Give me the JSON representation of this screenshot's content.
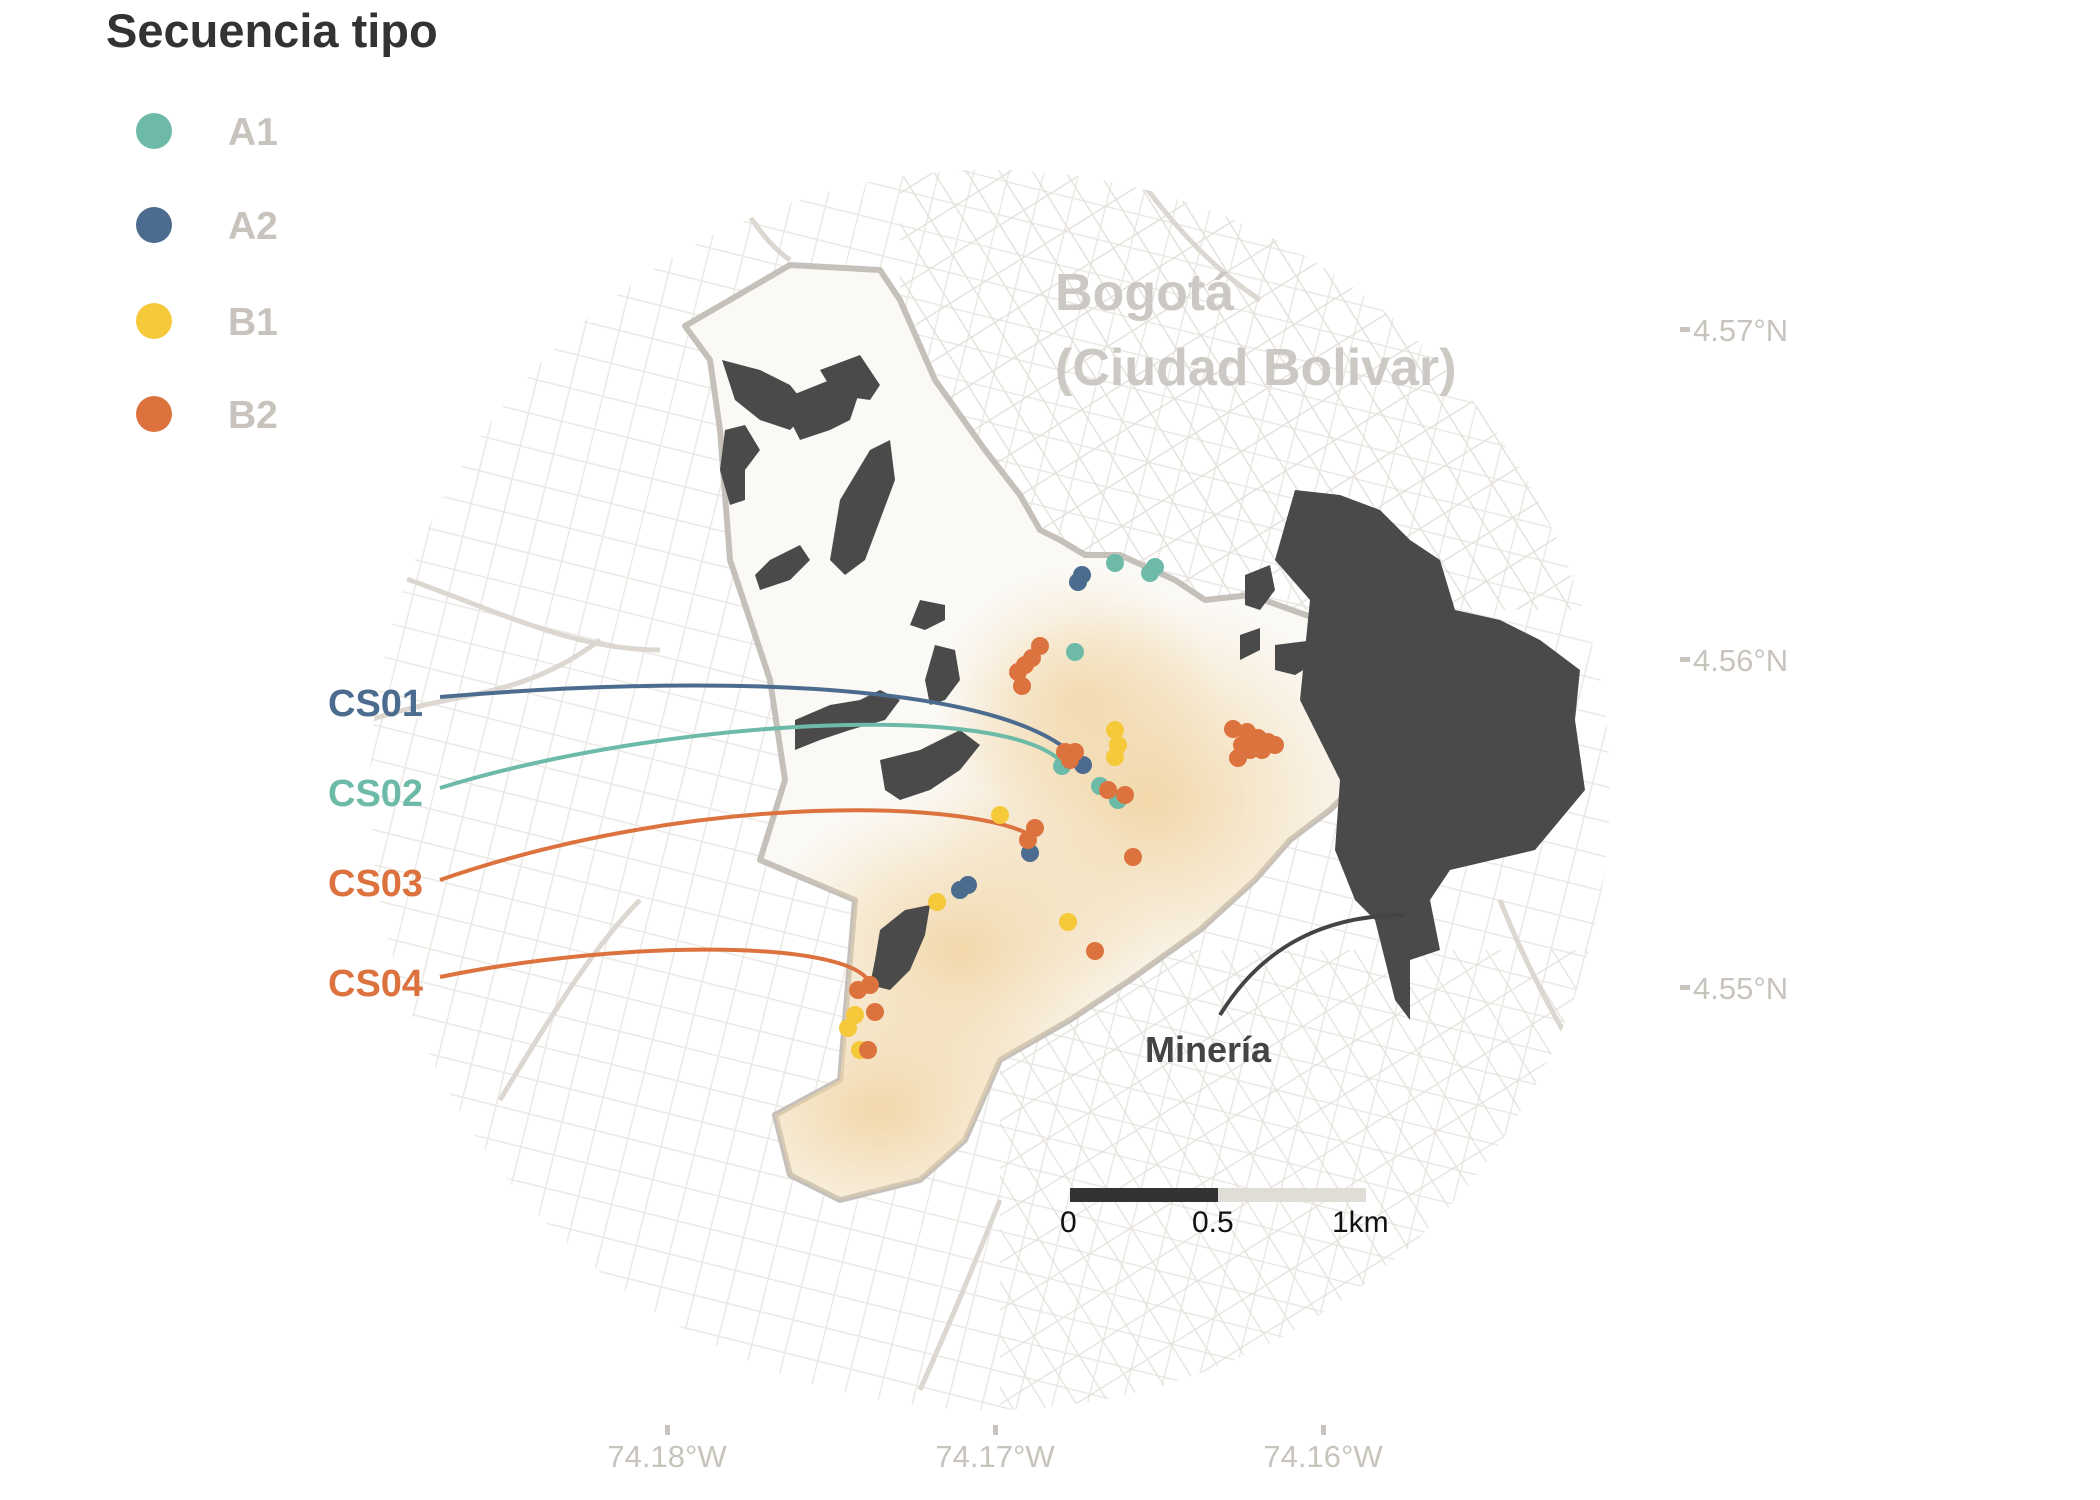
{
  "legend": {
    "title": "Secuencia tipo",
    "items": [
      {
        "key": "A1",
        "label": "A1",
        "color": "#6dbaa9"
      },
      {
        "key": "A2",
        "label": "A2",
        "color": "#4b6b8f"
      },
      {
        "key": "B1",
        "label": "B1",
        "color": "#f5c93a"
      },
      {
        "key": "B2",
        "label": "B2",
        "color": "#dc723e"
      }
    ]
  },
  "city_label": {
    "line1": "Bogotá",
    "line2": "(Ciudad Bolivar)"
  },
  "axes": {
    "lon_labels": [
      "74.18°W",
      "74.17°W",
      "74.16°W"
    ],
    "lat_labels": [
      "4.57°N",
      "4.56°N",
      "4.55°N"
    ]
  },
  "callouts": [
    {
      "label": "CS01",
      "series": "A2"
    },
    {
      "label": "CS02",
      "series": "A1"
    },
    {
      "label": "CS03",
      "series": "B2"
    },
    {
      "label": "CS04",
      "series": "B2"
    }
  ],
  "mining_label": "Minería",
  "scale_bar": {
    "labels": [
      "0",
      "0.5",
      "1km"
    ]
  },
  "colors": {
    "mining": "#4a4a4a",
    "boundary": "#c5c0ba",
    "streets": "#e0dcd6",
    "density": "#f3dcb4"
  }
}
